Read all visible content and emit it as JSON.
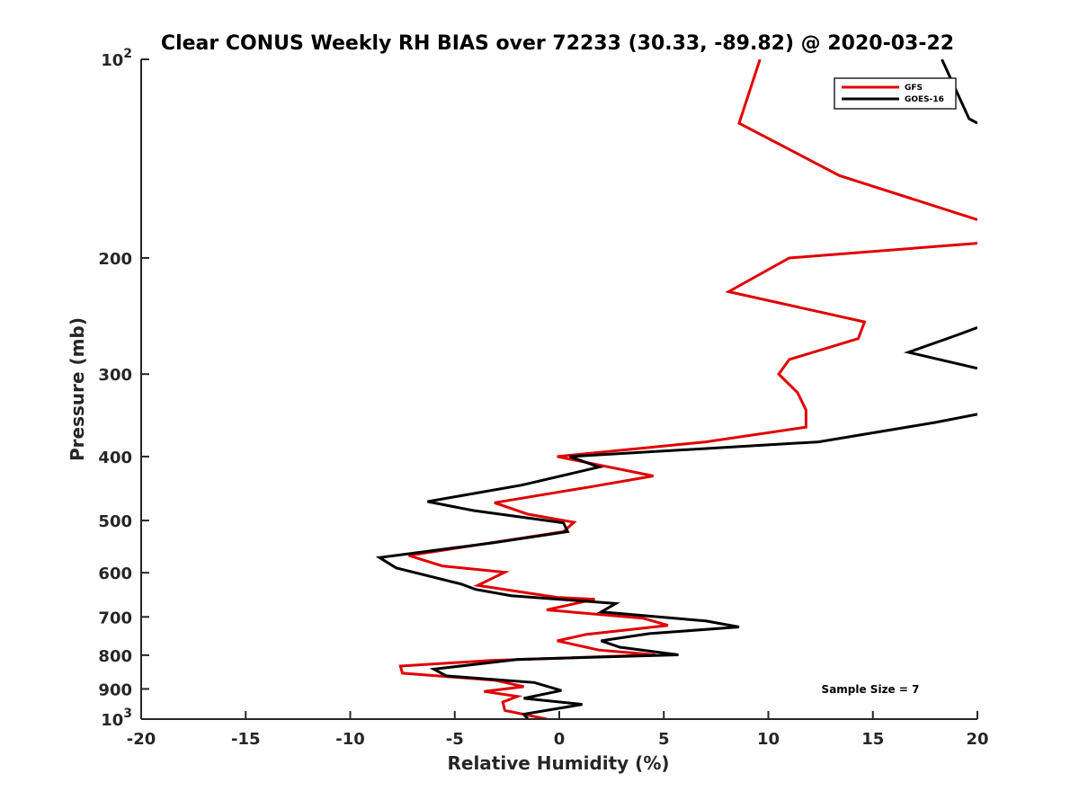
{
  "chart_data": {
    "type": "line",
    "title": "Clear CONUS Weekly RH BIAS over 72233 (30.33, -89.82) @ 2020-03-22",
    "xlabel": "Relative Humidity (%)",
    "ylabel": "Pressure (mb)",
    "xlim": [
      -20,
      20
    ],
    "ylim": [
      100,
      1000
    ],
    "yscale": "log",
    "y_reversed": true,
    "grid": false,
    "legend_position": "top-right",
    "x_ticks": [
      -20,
      -15,
      -10,
      -5,
      0,
      5,
      10,
      15,
      20
    ],
    "x_tick_labels": [
      "-20",
      "-15",
      "-10",
      "-5",
      "0",
      "5",
      "10",
      "15",
      "20"
    ],
    "y_ticks": [
      100,
      200,
      300,
      400,
      500,
      600,
      700,
      800,
      900,
      1000
    ],
    "y_tick_labels": [
      {
        "base": "10",
        "exp": "2"
      },
      {
        "base": "200",
        "exp": ""
      },
      {
        "base": "300",
        "exp": ""
      },
      {
        "base": "400",
        "exp": ""
      },
      {
        "base": "500",
        "exp": ""
      },
      {
        "base": "600",
        "exp": ""
      },
      {
        "base": "700",
        "exp": ""
      },
      {
        "base": "800",
        "exp": ""
      },
      {
        "base": "900",
        "exp": ""
      },
      {
        "base": "10",
        "exp": "3"
      }
    ],
    "annotation": "Sample Size = 7",
    "series": [
      {
        "name": "GFS",
        "color": "#e00000",
        "points": [
          [
            9.6,
            100
          ],
          [
            8.6,
            125
          ],
          [
            13.4,
            150
          ],
          [
            20.0,
            175
          ],
          [
            null,
            180
          ],
          [
            20.0,
            190
          ],
          [
            11.0,
            200
          ],
          [
            8.1,
            225
          ],
          [
            14.6,
            250
          ],
          [
            14.3,
            265
          ],
          [
            11.0,
            285
          ],
          [
            10.5,
            300
          ],
          [
            11.4,
            320
          ],
          [
            11.8,
            340
          ],
          [
            11.8,
            361
          ],
          [
            7.0,
            380
          ],
          [
            -0.1,
            400
          ],
          [
            4.5,
            428
          ],
          [
            1.6,
            444
          ],
          [
            -3.1,
            470
          ],
          [
            -1.5,
            489
          ],
          [
            0.7,
            503
          ],
          [
            0.2,
            520
          ],
          [
            -7.2,
            565
          ],
          [
            -5.6,
            586
          ],
          [
            -2.6,
            599
          ],
          [
            -3.9,
            627
          ],
          [
            -0.1,
            654
          ],
          [
            1.7,
            658
          ],
          [
            -0.6,
            683
          ],
          [
            4.0,
            703
          ],
          [
            5.2,
            721
          ],
          [
            1.3,
            744
          ],
          [
            -0.1,
            761
          ],
          [
            1.9,
            786
          ],
          [
            4.6,
            799
          ],
          [
            -3.3,
            815
          ],
          [
            -7.6,
            831
          ],
          [
            -7.5,
            852
          ],
          [
            -3.1,
            873
          ],
          [
            -1.7,
            893
          ],
          [
            -3.6,
            908
          ],
          [
            -2.0,
            924
          ],
          [
            -2.7,
            942
          ],
          [
            -2.6,
            970
          ],
          [
            -0.6,
            1000
          ]
        ]
      },
      {
        "name": "GOES-16",
        "color": "#000000",
        "points": [
          [
            18.3,
            100
          ],
          [
            19.6,
            123
          ],
          [
            20.0,
            125
          ],
          [
            null,
            130
          ],
          [
            20.0,
            255
          ],
          [
            19.0,
            262
          ],
          [
            16.7,
            278
          ],
          [
            20.0,
            294
          ],
          [
            null,
            310
          ],
          [
            20.0,
            345
          ],
          [
            18.0,
            355
          ],
          [
            12.4,
            380
          ],
          [
            0.5,
            400
          ],
          [
            1.9,
            415
          ],
          [
            -1.8,
            442
          ],
          [
            -6.3,
            468
          ],
          [
            -4.1,
            483
          ],
          [
            0.2,
            504
          ],
          [
            0.4,
            520
          ],
          [
            -3.1,
            540
          ],
          [
            -8.6,
            569
          ],
          [
            -7.8,
            590
          ],
          [
            -4.7,
            624
          ],
          [
            -4.0,
            636
          ],
          [
            -2.3,
            650
          ],
          [
            2.7,
            668
          ],
          [
            2.0,
            688
          ],
          [
            7.0,
            710
          ],
          [
            8.6,
            725
          ],
          [
            4.3,
            742
          ],
          [
            2.0,
            761
          ],
          [
            2.9,
            778
          ],
          [
            5.7,
            799
          ],
          [
            -2.0,
            812
          ],
          [
            -6.0,
            840
          ],
          [
            -5.4,
            860
          ],
          [
            -1.2,
            880
          ],
          [
            0.1,
            905
          ],
          [
            -1.7,
            930
          ],
          [
            1.1,
            950
          ],
          [
            -1.7,
            983
          ],
          [
            -1.5,
            1000
          ]
        ]
      }
    ]
  }
}
